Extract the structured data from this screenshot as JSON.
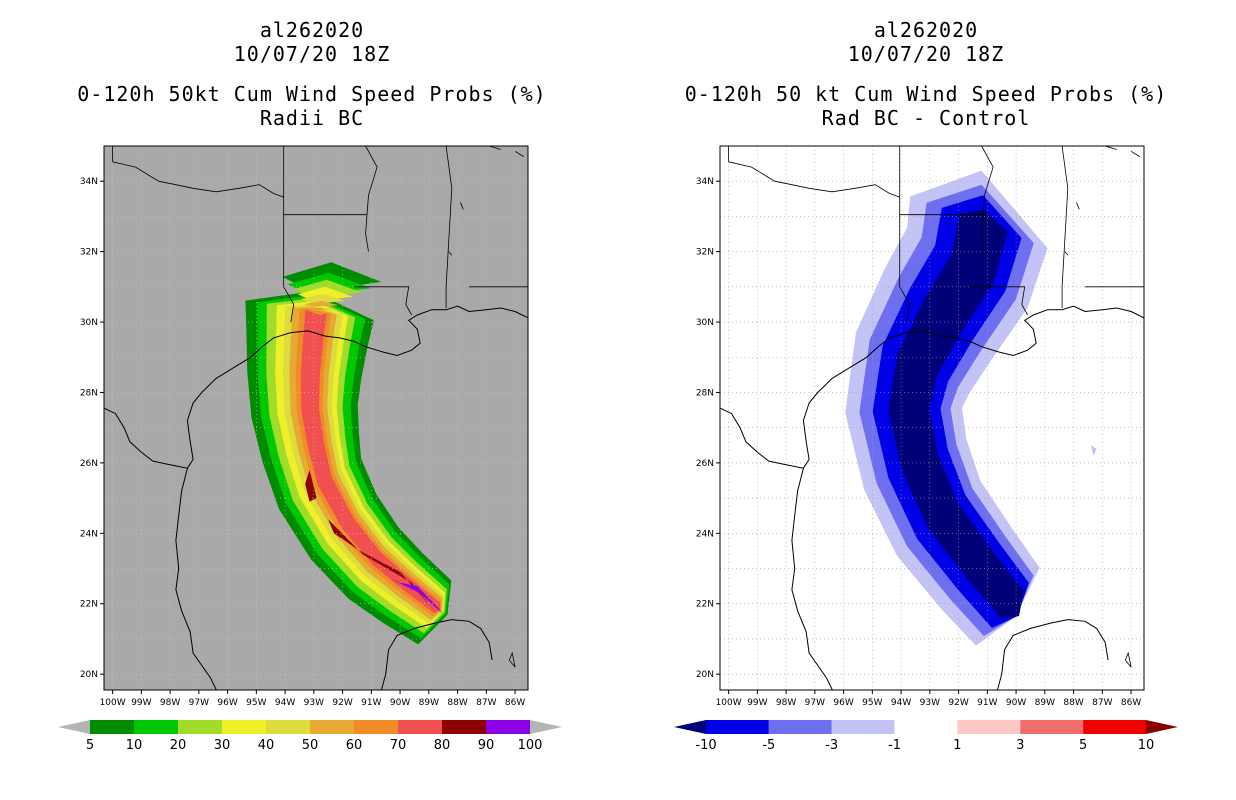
{
  "panels": [
    {
      "id": "left",
      "storm_id": "al262020",
      "datetime": "10/07/20 18Z",
      "title_line1": "0-120h 50kt Cum Wind Speed Probs (%)",
      "title_line2": "Radii BC",
      "background": "#a9a9a9",
      "colorbar": {
        "labels": [
          "5",
          "10",
          "20",
          "30",
          "40",
          "50",
          "60",
          "70",
          "80",
          "90",
          "100"
        ],
        "colors": [
          "#008c00",
          "#00c800",
          "#a0dc28",
          "#f0f028",
          "#dcdc3c",
          "#e6aa32",
          "#f08c28",
          "#f05050",
          "#8c0000",
          "#8c00e6"
        ],
        "left_arrow": "#b4b4b4",
        "right_arrow": "#b4b4b4"
      }
    },
    {
      "id": "right",
      "storm_id": "al262020",
      "datetime": "10/07/20 18Z",
      "title_line1": "0-120h 50 kt Cum Wind Speed Probs (%)",
      "title_line2": "Rad BC - Control",
      "background": "#ffffff",
      "colorbar": {
        "labels": [
          "-10",
          "-5",
          "-3",
          "-1",
          "1",
          "3",
          "5",
          "10"
        ],
        "colors": [
          "#0000e6",
          "#6e6ef0",
          "#c3c3f5",
          "#ffffff",
          "#ffc8c8",
          "#f06e6e",
          "#f00000"
        ],
        "left_arrow": "#000078",
        "right_arrow": "#8c0000"
      }
    }
  ],
  "map": {
    "lon_labels": [
      "100W",
      "99W",
      "98W",
      "97W",
      "96W",
      "95W",
      "94W",
      "93W",
      "92W",
      "91W",
      "90W",
      "89W",
      "88W",
      "87W",
      "86W"
    ],
    "lat_labels": [
      "34N",
      "32N",
      "30N",
      "28N",
      "26N",
      "24N",
      "22N",
      "20N"
    ]
  },
  "left_fields": {
    "bands": [
      {
        "label": "5",
        "color": "#008c00"
      },
      {
        "label": "10",
        "color": "#00c800"
      },
      {
        "label": "20",
        "color": "#a0dc28"
      },
      {
        "label": "30",
        "color": "#f0f028"
      },
      {
        "label": "40",
        "color": "#dcdc3c"
      },
      {
        "label": "50",
        "color": "#e6aa32"
      },
      {
        "label": "60",
        "color": "#f08c28"
      },
      {
        "label": "70",
        "color": "#f05050"
      },
      {
        "label": "80",
        "color": "#8c0000"
      },
      {
        "label": "90",
        "color": "#8c00e6"
      }
    ]
  },
  "right_fields": {
    "bands": [
      {
        "label": "-1",
        "color": "#c3c3f5"
      },
      {
        "label": "-3",
        "color": "#6e6ef0"
      },
      {
        "label": "-5",
        "color": "#0000e6"
      },
      {
        "label": "-10",
        "color": "#000078"
      }
    ]
  }
}
